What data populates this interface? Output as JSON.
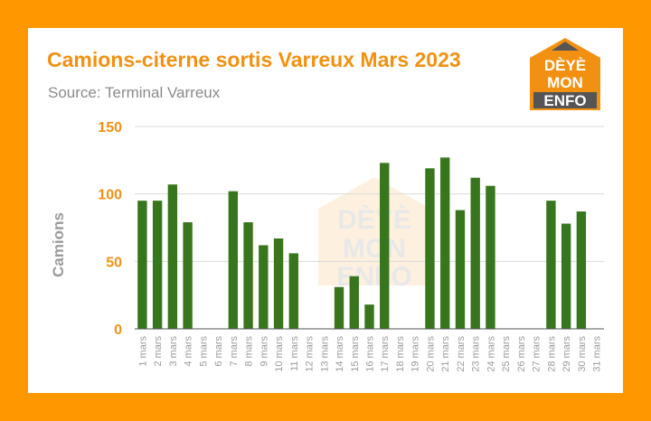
{
  "chart_data": {
    "type": "bar",
    "title": "Camions-citerne sortis Varreux Mars 2023",
    "subtitle": "Source: Terminal Varreux",
    "ylabel": "Camions",
    "xlabel": "",
    "ylim": [
      0,
      150
    ],
    "yticks": [
      0,
      50,
      100,
      150
    ],
    "grid": true,
    "categories": [
      "1 mars",
      "2 mars",
      "3 mars",
      "4 mars",
      "5 mars",
      "6 mars",
      "7 mars",
      "8 mars",
      "9 mars",
      "10 mars",
      "11 mars",
      "12 mars",
      "13 mars",
      "14 mars",
      "15 mars",
      "16 mars",
      "17 mars",
      "18 mars",
      "19 mars",
      "20 mars",
      "21 mars",
      "22 mars",
      "23 mars",
      "24 mars",
      "25 mars",
      "26 mars",
      "27 mars",
      "28 mars",
      "29 mars",
      "30 mars",
      "31 mars"
    ],
    "values": [
      95,
      95,
      107,
      79,
      0,
      0,
      102,
      79,
      62,
      67,
      56,
      0,
      0,
      31,
      39,
      18,
      123,
      0,
      0,
      119,
      127,
      88,
      112,
      106,
      0,
      0,
      0,
      95,
      78,
      87,
      0
    ],
    "bar_color": "#38761d"
  },
  "logo": {
    "lines": [
      "DÈYÈ",
      "MON",
      "ENFO"
    ],
    "colors": {
      "accent": "#f29111",
      "dark": "#555555"
    }
  },
  "colors": {
    "frame": "#ff9800",
    "title": "#f29111",
    "axis_text": "#9a9a9a",
    "tick_values": "#f29111",
    "grid": "#d9d9d9"
  }
}
